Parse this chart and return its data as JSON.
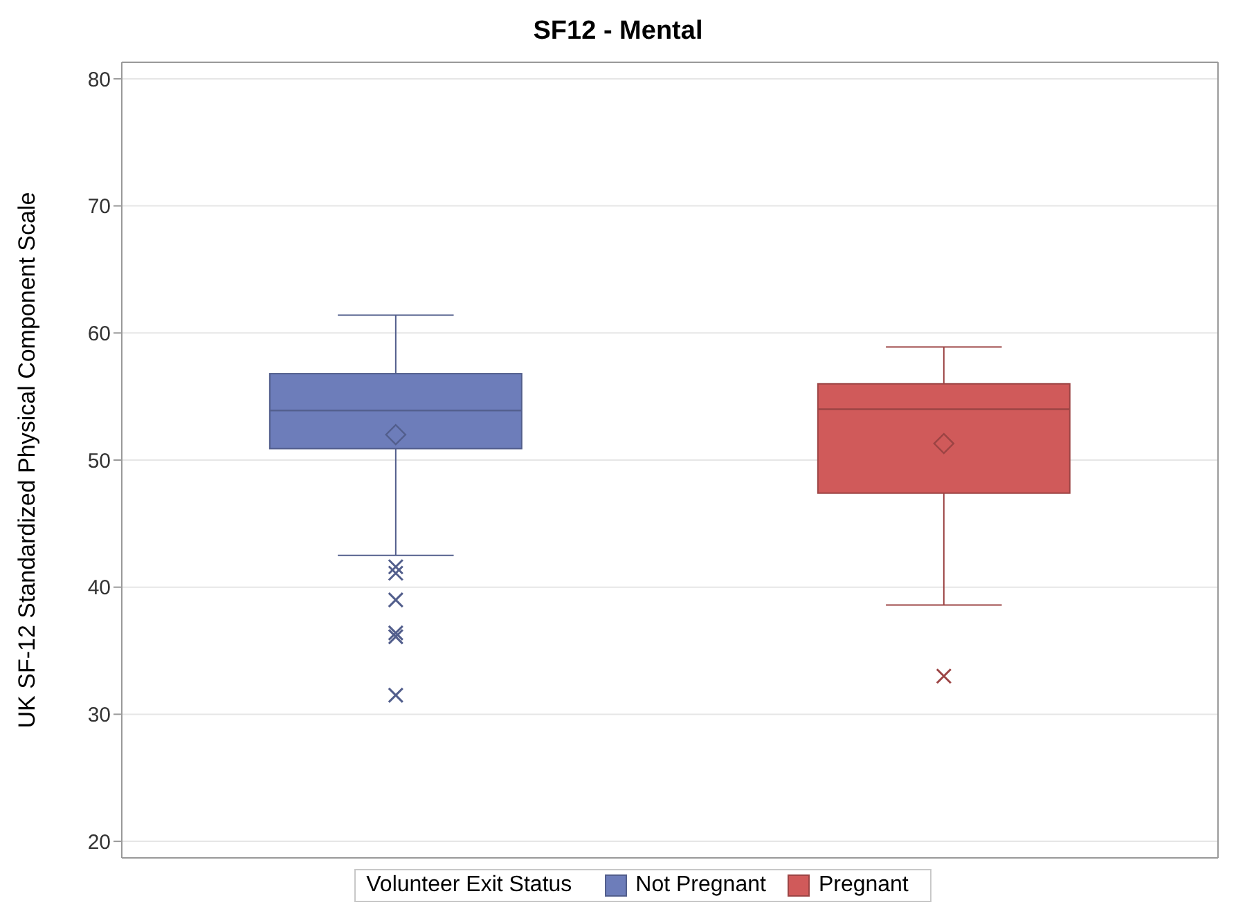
{
  "chart_data": {
    "type": "box",
    "title": "SF12 - Mental",
    "ylabel": "UK SF-12 Standardized Physical Component Scale",
    "legend_title": "Volunteer Exit Status",
    "categories": [
      null,
      null
    ],
    "series": [
      {
        "name": "Not Pregnant",
        "color": "#6d7dba",
        "boxes": [
          {
            "low": 42.5,
            "q1": 50.9,
            "median": 53.9,
            "q3": 56.8,
            "high": 61.4,
            "mean": 52.0,
            "outliers": [
              41.6,
              41.1,
              39.0,
              36.4,
              36.1,
              31.5
            ]
          },
          null
        ]
      },
      {
        "name": "Pregnant",
        "color": "#d05a5a",
        "boxes": [
          null,
          {
            "low": 38.6,
            "q1": 47.4,
            "median": 54.0,
            "q3": 56.0,
            "high": 58.9,
            "mean": 51.3,
            "outliers": [
              33.0
            ]
          }
        ]
      }
    ],
    "ylim": [
      18.7,
      81.3
    ],
    "yticks": [
      20,
      30,
      40,
      50,
      60,
      70,
      80
    ],
    "grid": "y",
    "legend": "bottom",
    "tick_labels": "y"
  }
}
